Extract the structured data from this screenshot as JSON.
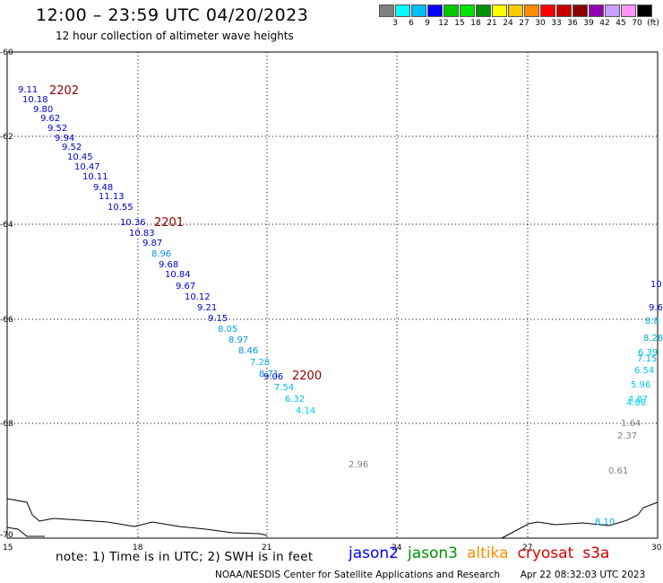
{
  "header": {
    "title": "12:00 – 23:59 UTC 04/20/2023",
    "subtitle": "12 hour collection of altimeter wave heights"
  },
  "color_scale": {
    "unit": "(ft)",
    "swatches": [
      "#808080",
      "#00ffff",
      "#00bfff",
      "#0000ff",
      "#00c800",
      "#00e000",
      "#009000",
      "#ffff00",
      "#ffc800",
      "#ff8c00",
      "#ff0000",
      "#c80000",
      "#8b0000",
      "#9400b0",
      "#c8a0ff",
      "#ff96ff",
      "#000000"
    ],
    "labels": [
      "3",
      "6",
      "9",
      "12",
      "15",
      "18",
      "21",
      "24",
      "27",
      "30",
      "33",
      "36",
      "39",
      "42",
      "45",
      "70"
    ]
  },
  "map": {
    "lon_labels": [
      "15",
      "18",
      "21",
      "24",
      "27",
      "30"
    ],
    "lat_labels": [
      "-60",
      "-62",
      "-64",
      "-66",
      "-68",
      "-70"
    ],
    "tracks": [
      {
        "id": "2202",
        "color": "#8b0000"
      },
      {
        "id": "2201",
        "color": "#8b0000"
      },
      {
        "id": "2200",
        "color": "#8b0000"
      }
    ],
    "swh_values": [
      {
        "v": "9.11",
        "c": "#0000c8"
      },
      {
        "v": "10.18",
        "c": "#0000c8"
      },
      {
        "v": "9.80",
        "c": "#0000c8"
      },
      {
        "v": "9.62",
        "c": "#0000c8"
      },
      {
        "v": "9.52",
        "c": "#0000c8"
      },
      {
        "v": "9.94",
        "c": "#0000c8"
      },
      {
        "v": "9.52",
        "c": "#0000c8"
      },
      {
        "v": "10.45",
        "c": "#0000c8"
      },
      {
        "v": "10.47",
        "c": "#0000c8"
      },
      {
        "v": "10.11",
        "c": "#0000c8"
      },
      {
        "v": "9.48",
        "c": "#0000c8"
      },
      {
        "v": "11.13",
        "c": "#0000c8"
      },
      {
        "v": "10.55",
        "c": "#0000c8"
      },
      {
        "v": "10.36",
        "c": "#0000c8"
      },
      {
        "v": "10.83",
        "c": "#0000c8"
      },
      {
        "v": "9.87",
        "c": "#0000c8"
      },
      {
        "v": "8.96",
        "c": "#0090e0"
      },
      {
        "v": "9.68",
        "c": "#0000c8"
      },
      {
        "v": "10.84",
        "c": "#0000c8"
      },
      {
        "v": "9.67",
        "c": "#0000c8"
      },
      {
        "v": "10.12",
        "c": "#0000c8"
      },
      {
        "v": "9.21",
        "c": "#0000c8"
      },
      {
        "v": "9.15",
        "c": "#0000c8"
      },
      {
        "v": "8.05",
        "c": "#00a8e0"
      },
      {
        "v": "8.97",
        "c": "#0090e0"
      },
      {
        "v": "8.46",
        "c": "#0090e0"
      },
      {
        "v": "7.28",
        "c": "#00b8e8"
      },
      {
        "v": "8.71",
        "c": "#0090e0"
      },
      {
        "v": "9.06",
        "c": "#0000c8"
      },
      {
        "v": "7.54",
        "c": "#00b8e8"
      },
      {
        "v": "6.32",
        "c": "#00c0f0"
      },
      {
        "v": "4.14",
        "c": "#00d0f0"
      },
      {
        "v": "2.96",
        "c": "#808080"
      },
      {
        "v": "1.64",
        "c": "#808080"
      },
      {
        "v": "2.37",
        "c": "#808080"
      },
      {
        "v": "0.61",
        "c": "#808080"
      },
      {
        "v": "8.10",
        "c": "#00a8e0"
      },
      {
        "v": "10",
        "c": "#0000c8"
      },
      {
        "v": "9.6",
        "c": "#0000c8"
      },
      {
        "v": "8.8",
        "c": "#00a8e0"
      },
      {
        "v": "8.28",
        "c": "#00a8e0"
      },
      {
        "v": "6.39",
        "c": "#00b8e8"
      },
      {
        "v": "7.15",
        "c": "#00b8e8"
      },
      {
        "v": "6.54",
        "c": "#00c0f0"
      },
      {
        "v": "5.96",
        "c": "#00c8f0"
      },
      {
        "v": "4.87",
        "c": "#00d0f0"
      },
      {
        "v": "4.88",
        "c": "#00d0f0"
      }
    ]
  },
  "note": "note:  1) Time is in UTC;  2) SWH is in feet",
  "satellites": [
    {
      "name": "jason2",
      "color": "#0000ff"
    },
    {
      "name": "jason3",
      "color": "#009000"
    },
    {
      "name": "altika",
      "color": "#ff8c00"
    },
    {
      "name": "cryosat",
      "color": "#e00000"
    },
    {
      "name": "s3a",
      "color": "#c80000"
    }
  ],
  "footer": {
    "center": "NOAA/NESDIS Center for Satellite Applications and Research",
    "timestamp": "Apr 22 08:32:03 UTC 2023"
  }
}
